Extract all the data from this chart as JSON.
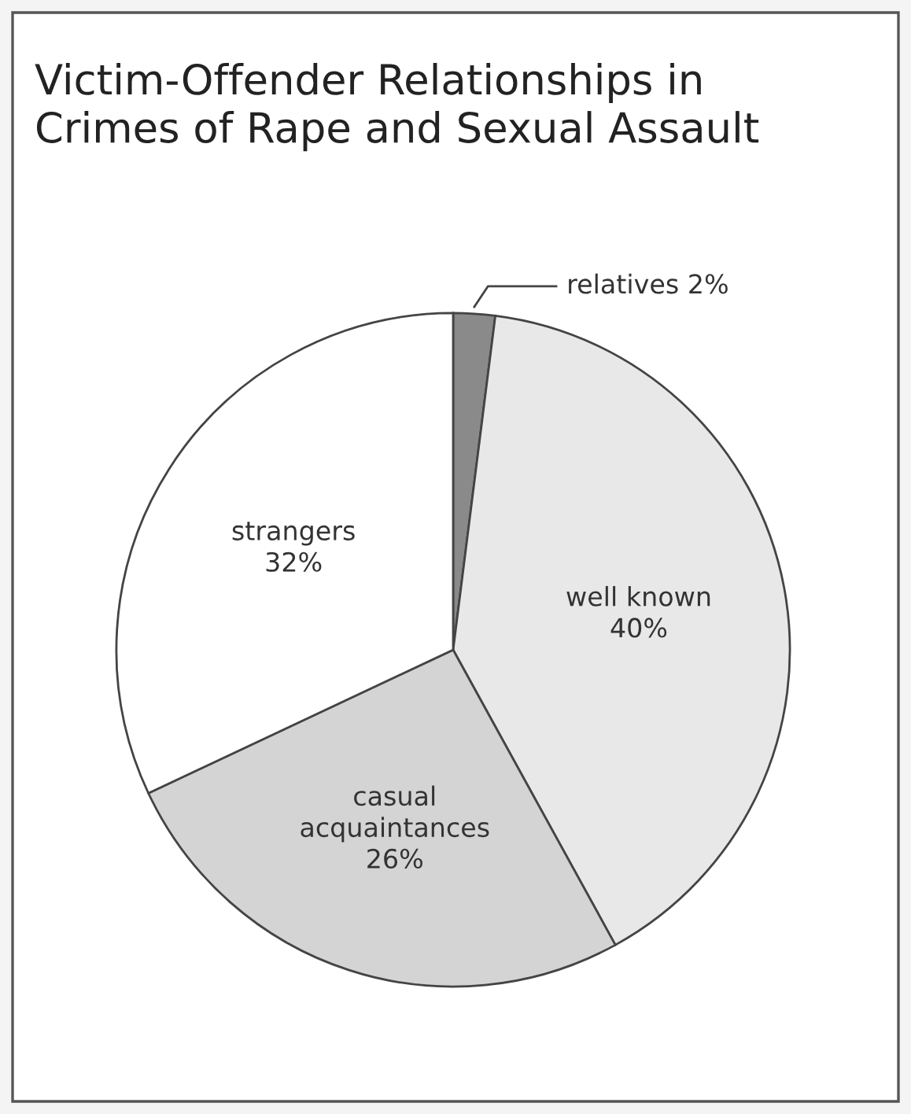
{
  "chart_data": {
    "type": "pie",
    "title": "Victim-Offender Relationships in\nCrimes of Rape and Sexual Assault",
    "categories": [
      "relatives",
      "well known",
      "casual\nacquaintances",
      "strangers"
    ],
    "values": [
      2,
      40,
      26,
      32
    ],
    "value_labels": [
      "2%",
      "40%",
      "26%",
      "32%"
    ],
    "colors": [
      "#8a8a8a",
      "#e8e8e8",
      "#d4d4d4",
      "#ffffff"
    ]
  }
}
